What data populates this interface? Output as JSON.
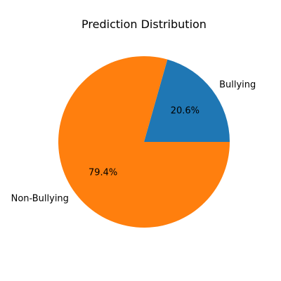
{
  "chart_data": {
    "type": "pie",
    "title": "Prediction Distribution",
    "slices": [
      {
        "label": "Bullying",
        "value": 20.6,
        "pct_label": "20.6%",
        "color": "#1f77b4"
      },
      {
        "label": "Non-Bullying",
        "value": 79.4,
        "pct_label": "79.4%",
        "color": "#ff7f0e"
      }
    ],
    "start_angle_deg": 0,
    "direction": "counterclockwise"
  }
}
